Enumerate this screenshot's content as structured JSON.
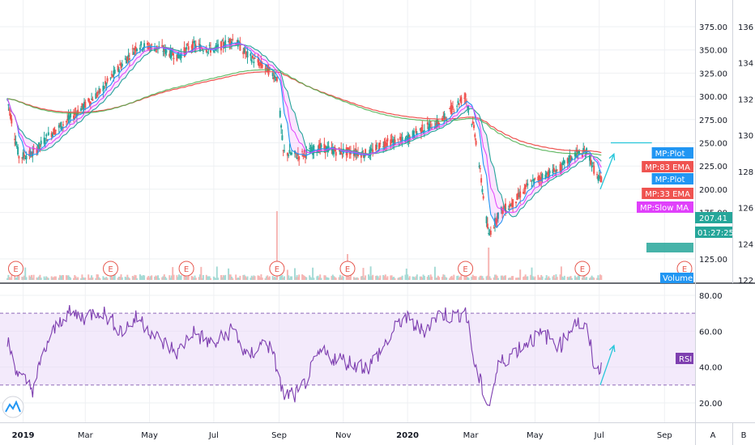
{
  "chart_data": [
    {
      "type": "candlestick",
      "x_ticks": [
        "2019",
        "Mar",
        "May",
        "Jul",
        "Sep",
        "Nov",
        "2020",
        "Mar",
        "May",
        "Jul",
        "Sep"
      ],
      "right_axis_ticks": [
        375.0,
        350.0,
        325.0,
        300.0,
        275.0,
        250.0,
        225.0,
        200.0,
        175.0,
        125.0
      ],
      "left_scale_ticks": [
        136,
        134,
        132,
        130,
        128,
        126,
        124,
        122
      ],
      "price_path": [
        [
          "2018-12-15",
          308
        ],
        [
          "2018-12-28",
          235
        ],
        [
          "2019-01-10",
          238
        ],
        [
          "2019-01-25",
          258
        ],
        [
          "2019-02-10",
          272
        ],
        [
          "2019-02-28",
          290
        ],
        [
          "2019-03-15",
          305
        ],
        [
          "2019-04-05",
          335
        ],
        [
          "2019-04-20",
          355
        ],
        [
          "2019-05-10",
          352
        ],
        [
          "2019-05-28",
          343
        ],
        [
          "2019-06-10",
          355
        ],
        [
          "2019-07-01",
          350
        ],
        [
          "2019-07-20",
          362
        ],
        [
          "2019-08-01",
          345
        ],
        [
          "2019-08-20",
          330
        ],
        [
          "2019-08-30",
          320
        ],
        [
          "2019-09-05",
          240
        ],
        [
          "2019-09-20",
          236
        ],
        [
          "2019-10-10",
          245
        ],
        [
          "2019-10-25",
          241
        ],
        [
          "2019-11-10",
          240
        ],
        [
          "2019-11-25",
          238
        ],
        [
          "2019-12-10",
          250
        ],
        [
          "2019-12-28",
          252
        ],
        [
          "2020-01-15",
          265
        ],
        [
          "2020-02-01",
          272
        ],
        [
          "2020-02-15",
          290
        ],
        [
          "2020-02-25",
          300
        ],
        [
          "2020-03-05",
          260
        ],
        [
          "2020-03-18",
          150
        ],
        [
          "2020-03-28",
          175
        ],
        [
          "2020-04-10",
          185
        ],
        [
          "2020-04-25",
          205
        ],
        [
          "2020-05-10",
          215
        ],
        [
          "2020-05-25",
          222
        ],
        [
          "2020-06-08",
          238
        ],
        [
          "2020-06-20",
          240
        ],
        [
          "2020-06-28",
          215
        ],
        [
          "2020-07-04",
          207.41
        ]
      ],
      "indicators": [
        {
          "name": "MP:Plot",
          "color": "#2196f3"
        },
        {
          "name": "MP:83 EMA",
          "color": "#ef5350"
        },
        {
          "name": "MP:Plot",
          "color": "#2196f3"
        },
        {
          "name": "MP:33 EMA",
          "color": "#ef5350"
        },
        {
          "name": "MP:Slow MA",
          "color": "#e040fb"
        },
        {
          "name": "Volume",
          "color": "#2196f3"
        }
      ],
      "last_price": "207.41",
      "countdown": "01:27:25",
      "earnings_marker": "E",
      "earnings_dates": [
        "2018-12-25",
        "2019-03-25",
        "2019-06-05",
        "2019-08-30",
        "2019-11-05",
        "2020-02-25",
        "2020-06-15",
        "2020-09-20"
      ],
      "horizontal_line": {
        "start": "2020-07-12",
        "end": "2020-08-20",
        "value": 250
      },
      "projection_arrow": {
        "from": [
          "2020-07-02",
          200
        ],
        "to": [
          "2020-07-15",
          238
        ]
      },
      "grid": true
    },
    {
      "type": "line",
      "name": "RSI",
      "y_ticks": [
        80.0,
        60.0,
        40.0,
        20.0
      ],
      "band": [
        30,
        70
      ],
      "band_color": "#ead9f7",
      "line_color": "#7e3fb0",
      "rsi_path": [
        [
          "2018-12-15",
          58
        ],
        [
          "2018-12-28",
          35
        ],
        [
          "2019-01-10",
          28
        ],
        [
          "2019-01-25",
          55
        ],
        [
          "2019-02-10",
          70
        ],
        [
          "2019-02-28",
          68
        ],
        [
          "2019-03-15",
          72
        ],
        [
          "2019-04-05",
          60
        ],
        [
          "2019-04-20",
          68
        ],
        [
          "2019-05-10",
          55
        ],
        [
          "2019-05-28",
          48
        ],
        [
          "2019-06-10",
          60
        ],
        [
          "2019-07-01",
          52
        ],
        [
          "2019-07-20",
          62
        ],
        [
          "2019-08-01",
          45
        ],
        [
          "2019-08-20",
          55
        ],
        [
          "2019-08-30",
          40
        ],
        [
          "2019-09-05",
          24
        ],
        [
          "2019-09-20",
          25
        ],
        [
          "2019-10-10",
          48
        ],
        [
          "2019-10-25",
          45
        ],
        [
          "2019-11-10",
          42
        ],
        [
          "2019-11-25",
          40
        ],
        [
          "2019-12-10",
          52
        ],
        [
          "2019-12-28",
          68
        ],
        [
          "2020-01-15",
          60
        ],
        [
          "2020-02-01",
          70
        ],
        [
          "2020-02-15",
          68
        ],
        [
          "2020-02-25",
          72
        ],
        [
          "2020-03-05",
          40
        ],
        [
          "2020-03-18",
          18
        ],
        [
          "2020-03-28",
          42
        ],
        [
          "2020-04-10",
          48
        ],
        [
          "2020-04-25",
          55
        ],
        [
          "2020-05-10",
          58
        ],
        [
          "2020-05-25",
          52
        ],
        [
          "2020-06-08",
          66
        ],
        [
          "2020-06-20",
          60
        ],
        [
          "2020-06-28",
          35
        ],
        [
          "2020-07-04",
          43
        ]
      ],
      "projection_arrow": {
        "from": [
          "2020-07-02",
          30
        ],
        "to": [
          "2020-07-15",
          52
        ]
      },
      "label": "RSI"
    }
  ],
  "toolbar": {
    "auto_scale": "A",
    "scale_button_b": "B"
  },
  "brand_icon": "tradingview-logo-icon"
}
